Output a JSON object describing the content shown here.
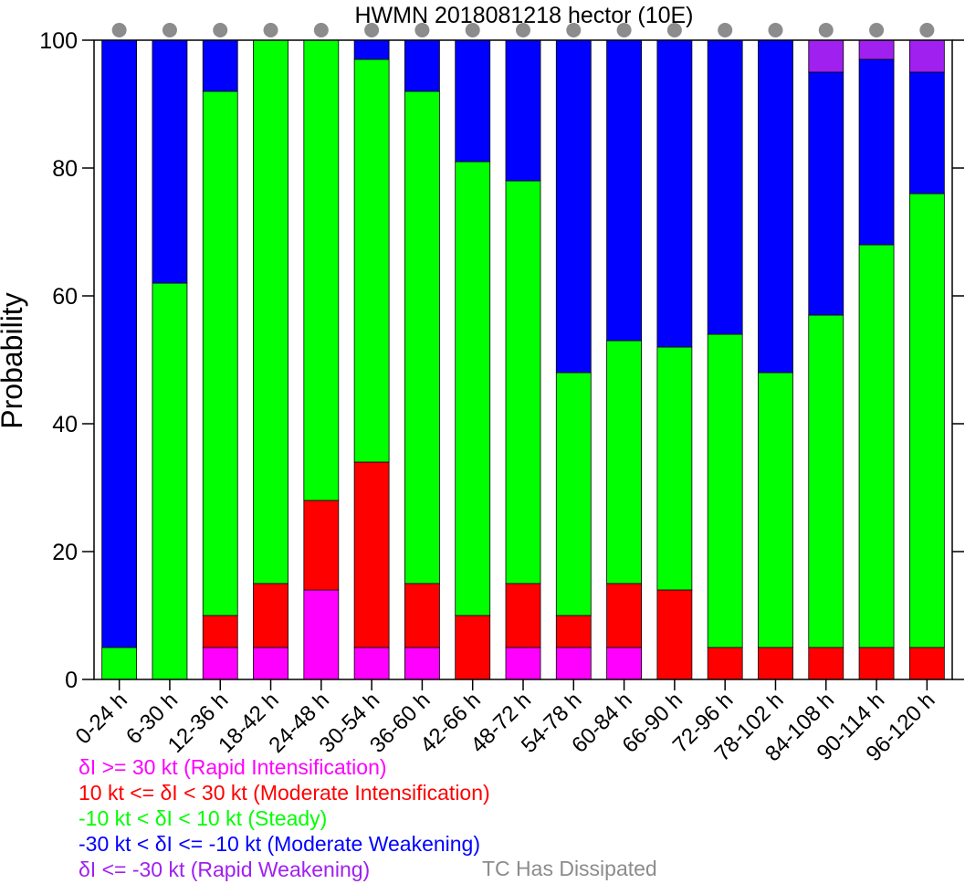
{
  "chart_data": {
    "type": "bar",
    "stacked": true,
    "title": "HWMN 2018081218 hector (10E)",
    "xlabel": "",
    "ylabel": "Probability",
    "ylim": [
      0,
      100
    ],
    "yticks": [
      "0",
      "20",
      "40",
      "60",
      "80",
      "100"
    ],
    "categories": [
      "0-24 h",
      "6-30 h",
      "12-36 h",
      "18-42 h",
      "24-48 h",
      "30-54 h",
      "36-60 h",
      "42-66 h",
      "48-72 h",
      "54-78 h",
      "60-84 h",
      "66-90 h",
      "72-96 h",
      "78-102 h",
      "84-108 h",
      "90-114 h",
      "96-120 h"
    ],
    "series": [
      {
        "name": "δI >= 30 kt (Rapid Intensification)",
        "color": "#ff00ff",
        "values": [
          0,
          0,
          5,
          5,
          14,
          5,
          5,
          0,
          5,
          5,
          5,
          0,
          0,
          0,
          0,
          0,
          0
        ]
      },
      {
        "name": "10 kt <= δI < 30 kt (Moderate Intensification)",
        "color": "#ff0000",
        "values": [
          0,
          0,
          5,
          10,
          14,
          29,
          10,
          10,
          10,
          5,
          10,
          14,
          5,
          5,
          5,
          5,
          5
        ]
      },
      {
        "name": "-10 kt < δI < 10 kt (Steady)",
        "color": "#00ff00",
        "values": [
          5,
          62,
          82,
          85,
          72,
          63,
          77,
          71,
          63,
          38,
          38,
          38,
          49,
          43,
          52,
          63,
          71
        ]
      },
      {
        "name": "-30 kt < δI <= -10 kt (Moderate Weakening)",
        "color": "#0000ff",
        "values": [
          95,
          38,
          8,
          0,
          0,
          3,
          8,
          19,
          22,
          52,
          47,
          48,
          46,
          52,
          38,
          29,
          19
        ]
      },
      {
        "name": "δI <= -30 kt (Rapid Weakening)",
        "color": "#a020f0",
        "values": [
          0,
          0,
          0,
          0,
          0,
          0,
          0,
          0,
          0,
          0,
          0,
          0,
          0,
          0,
          5,
          3,
          5
        ]
      }
    ],
    "status_markers": {
      "color": "#8c8c8c",
      "values": [
        1,
        1,
        1,
        1,
        1,
        1,
        1,
        1,
        1,
        1,
        1,
        1,
        1,
        1,
        1,
        1,
        1
      ]
    },
    "dissipated_label": "TC Has Dissipated",
    "dissipated_color": "#8c8c8c",
    "legend_position": "bottom-left",
    "grid": false
  }
}
